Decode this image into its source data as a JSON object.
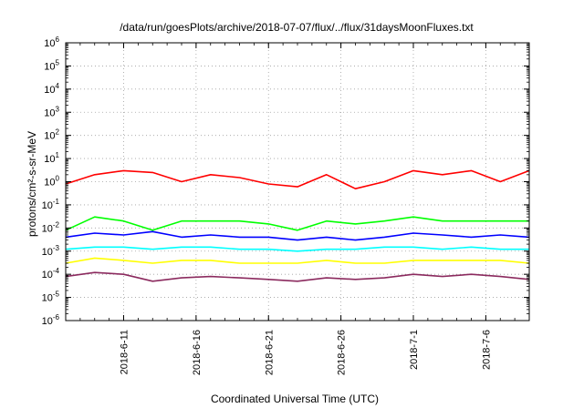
{
  "chart_data": {
    "type": "line",
    "title": "/data/run/goesPlots/archive/2018-07-07/flux/../flux/31daysMoonFluxes.txt",
    "xlabel": "Coordinated Universal Time (UTC)",
    "ylabel": "protons/cm²-s-sr-MeV",
    "yscale": "log",
    "ylim": [
      1e-06,
      1000000.0
    ],
    "xlim": [
      "2018-06-07",
      "2018-07-09"
    ],
    "grid": true,
    "y_ticks": [
      {
        "base": "10",
        "exp": "-6"
      },
      {
        "base": "10",
        "exp": "-5"
      },
      {
        "base": "10",
        "exp": "-4"
      },
      {
        "base": "10",
        "exp": "-3"
      },
      {
        "base": "10",
        "exp": "-2"
      },
      {
        "base": "10",
        "exp": "-1"
      },
      {
        "base": "10",
        "exp": "0"
      },
      {
        "base": "10",
        "exp": "1"
      },
      {
        "base": "10",
        "exp": "2"
      },
      {
        "base": "10",
        "exp": "3"
      },
      {
        "base": "10",
        "exp": "4"
      },
      {
        "base": "10",
        "exp": "5"
      },
      {
        "base": "10",
        "exp": "6"
      }
    ],
    "x_ticks": [
      "2018-6-11",
      "2018-6-16",
      "2018-6-21",
      "2018-6-26",
      "2018-7-1",
      "2018-7-6"
    ],
    "x": [
      "2018-06-07",
      "2018-06-09",
      "2018-06-11",
      "2018-06-13",
      "2018-06-15",
      "2018-06-17",
      "2018-06-19",
      "2018-06-21",
      "2018-06-23",
      "2018-06-25",
      "2018-06-27",
      "2018-06-29",
      "2018-07-01",
      "2018-07-03",
      "2018-07-05",
      "2018-07-07",
      "2018-07-09"
    ],
    "series": [
      {
        "color": "#ff0000",
        "values": [
          0.8,
          2.0,
          3.0,
          2.5,
          1.0,
          2.0,
          1.5,
          0.8,
          0.6,
          2.0,
          0.5,
          1.0,
          3.0,
          2.0,
          3.0,
          1.0,
          3.0
        ]
      },
      {
        "color": "#00ff00",
        "values": [
          0.008,
          0.03,
          0.02,
          0.008,
          0.02,
          0.02,
          0.02,
          0.015,
          0.008,
          0.02,
          0.015,
          0.02,
          0.03,
          0.02,
          0.02,
          0.02,
          0.02
        ]
      },
      {
        "color": "#00ffff",
        "values": [
          0.0012,
          0.0015,
          0.0015,
          0.0012,
          0.0015,
          0.0015,
          0.0012,
          0.0012,
          0.001,
          0.0012,
          0.0012,
          0.0015,
          0.0015,
          0.0012,
          0.0015,
          0.0012,
          0.0012
        ]
      },
      {
        "color": "#0000ff",
        "values": [
          0.004,
          0.006,
          0.005,
          0.007,
          0.004,
          0.005,
          0.004,
          0.004,
          0.003,
          0.004,
          0.003,
          0.004,
          0.006,
          0.005,
          0.004,
          0.005,
          0.004
        ]
      },
      {
        "color": "#ffff00",
        "values": [
          0.0003,
          0.0005,
          0.0004,
          0.0003,
          0.0004,
          0.0004,
          0.0003,
          0.0003,
          0.0003,
          0.0004,
          0.0003,
          0.0003,
          0.0004,
          0.0004,
          0.0004,
          0.0004,
          0.0003
        ]
      },
      {
        "color": "#8b2a5e",
        "values": [
          8e-05,
          0.00012,
          0.0001,
          5e-05,
          7e-05,
          8e-05,
          7e-05,
          6e-05,
          5e-05,
          7e-05,
          6e-05,
          7e-05,
          0.0001,
          8e-05,
          0.0001,
          8e-05,
          6e-05
        ]
      }
    ]
  }
}
